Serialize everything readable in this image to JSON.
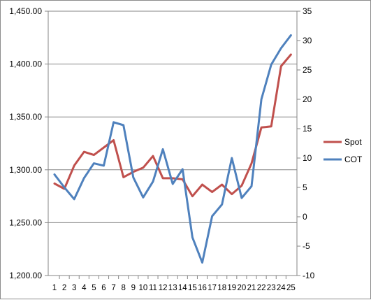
{
  "chart_data": {
    "type": "line",
    "title": "",
    "xlabel": "",
    "ylabel": "",
    "y2label": "",
    "legend_position": "right",
    "grid": {
      "horizontal": true,
      "vertical": false
    },
    "x": [
      1,
      2,
      3,
      4,
      5,
      6,
      7,
      8,
      9,
      10,
      11,
      12,
      13,
      14,
      15,
      16,
      17,
      18,
      19,
      20,
      21,
      22,
      23,
      24,
      25
    ],
    "x_tick_labels": [
      "1",
      "2",
      "3",
      "4",
      "5",
      "6",
      "7",
      "8",
      "9",
      "10",
      "11",
      "12",
      "13",
      "14",
      "15",
      "16",
      "17",
      "18",
      "19",
      "20",
      "21",
      "22",
      "23",
      "24",
      "25"
    ],
    "y_left": {
      "range": [
        1200,
        1450
      ],
      "ticks": [
        1200,
        1250,
        1300,
        1350,
        1400,
        1450
      ],
      "tick_labels": [
        "1,200.00",
        "1,250.00",
        "1,300.00",
        "1,350.00",
        "1,400.00",
        "1,450.00"
      ]
    },
    "y_right": {
      "range": [
        -10,
        35
      ],
      "ticks": [
        -10,
        -5,
        0,
        5,
        10,
        15,
        20,
        25,
        30,
        35
      ],
      "tick_labels": [
        "-10",
        "-5",
        "0",
        "5",
        "10",
        "15",
        "20",
        "25",
        "30",
        "35"
      ]
    },
    "series": [
      {
        "name": "Spot",
        "axis": "left",
        "color": "#c0504d",
        "values": [
          1287,
          1282,
          1304,
          1317,
          1314,
          1321,
          1328,
          1293,
          1298,
          1302,
          1313,
          1292,
          1292,
          1291,
          1275,
          1286,
          1279,
          1286,
          1277,
          1285,
          1306,
          1340,
          1341,
          1398,
          1409
        ]
      },
      {
        "name": "COT",
        "axis": "right",
        "color": "#4f81bd",
        "values": [
          7.2,
          5.0,
          3.0,
          6.6,
          9.1,
          8.7,
          16.1,
          15.6,
          6.7,
          3.3,
          6.0,
          11.5,
          5.6,
          8.1,
          -3.5,
          -7.8,
          0.1,
          2.1,
          10.0,
          3.2,
          5.2,
          20.0,
          25.9,
          28.7,
          30.9
        ]
      }
    ]
  }
}
